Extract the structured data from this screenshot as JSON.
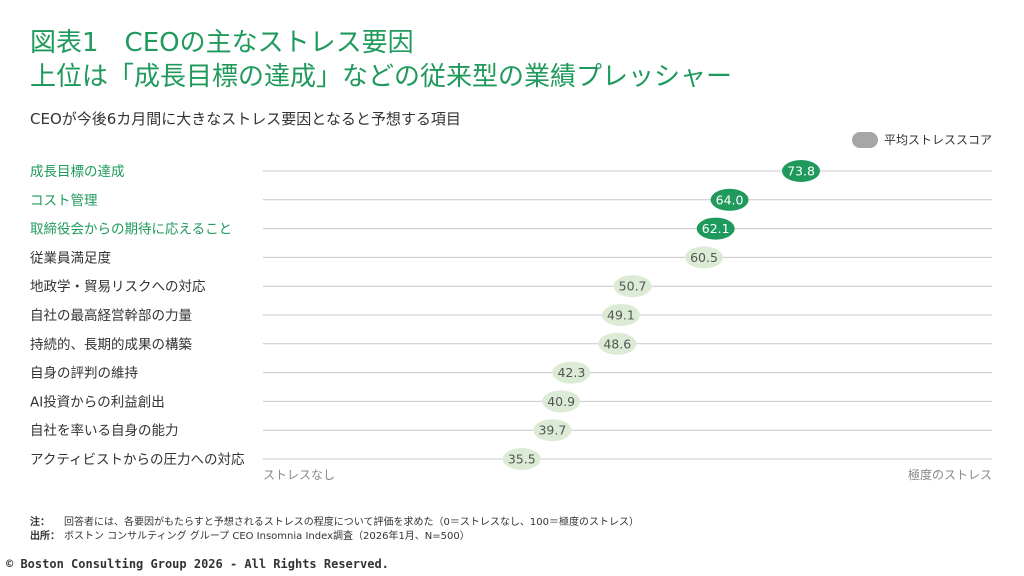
{
  "header": {
    "title_line1": "図表1　CEOの主なストレス要因",
    "title_line2": "上位は「成長目標の達成」などの従来型の業績プレッシャー",
    "subtitle": "CEOが今後6カ月間に大きなストレス要因となると予想する項目"
  },
  "legend": {
    "label": "平均ストレススコア"
  },
  "colors": {
    "highlight": "#1f9a5c",
    "highlight_text": "#ffffff",
    "normal_bubble": "#dcebd5",
    "normal_text": "#555555",
    "gridline": "#c8c8c8",
    "legend_swatch": "#a6a6a6",
    "title": "#1f9a5c"
  },
  "chart_data": {
    "type": "scatter",
    "xlabel_left": "ストレスなし",
    "xlabel_right": "極度のストレス",
    "xlim": [
      0,
      100
    ],
    "categories": [
      "成長目標の達成",
      "コスト管理",
      "取締役会からの期待に応えること",
      "従業員満足度",
      "地政学・貿易リスクへの対応",
      "自社の最高経営幹部の力量",
      "持続的、長期的成果の構築",
      "自身の評判の維持",
      "AI投資からの利益創出",
      "自社を率いる自身の能力",
      "アクティビストからの圧力への対応"
    ],
    "values": [
      73.8,
      64.0,
      62.1,
      60.5,
      50.7,
      49.1,
      48.6,
      42.3,
      40.9,
      39.7,
      35.5
    ],
    "value_labels": [
      "73.8",
      "64.0",
      "62.1",
      "60.5",
      "50.7",
      "49.1",
      "48.6",
      "42.3",
      "40.9",
      "39.7",
      "35.5"
    ],
    "highlighted": [
      true,
      true,
      true,
      false,
      false,
      false,
      false,
      false,
      false,
      false,
      false
    ],
    "series": [
      {
        "name": "平均ストレススコア"
      }
    ],
    "legend_position": "top-right"
  },
  "notes": {
    "note_label": "注：",
    "note_text": "回答者には、各要因がもたらすと予想されるストレスの程度について評価を求めた（0＝ストレスなし、100＝極度のストレス）",
    "source_label": "出所：",
    "source_text": "ボストン コンサルティング グループ CEO Insomnia Index調査（2026年1月、N=500）"
  },
  "footer": {
    "copyright": "© Boston Consulting Group 2026 - All Rights Reserved."
  }
}
